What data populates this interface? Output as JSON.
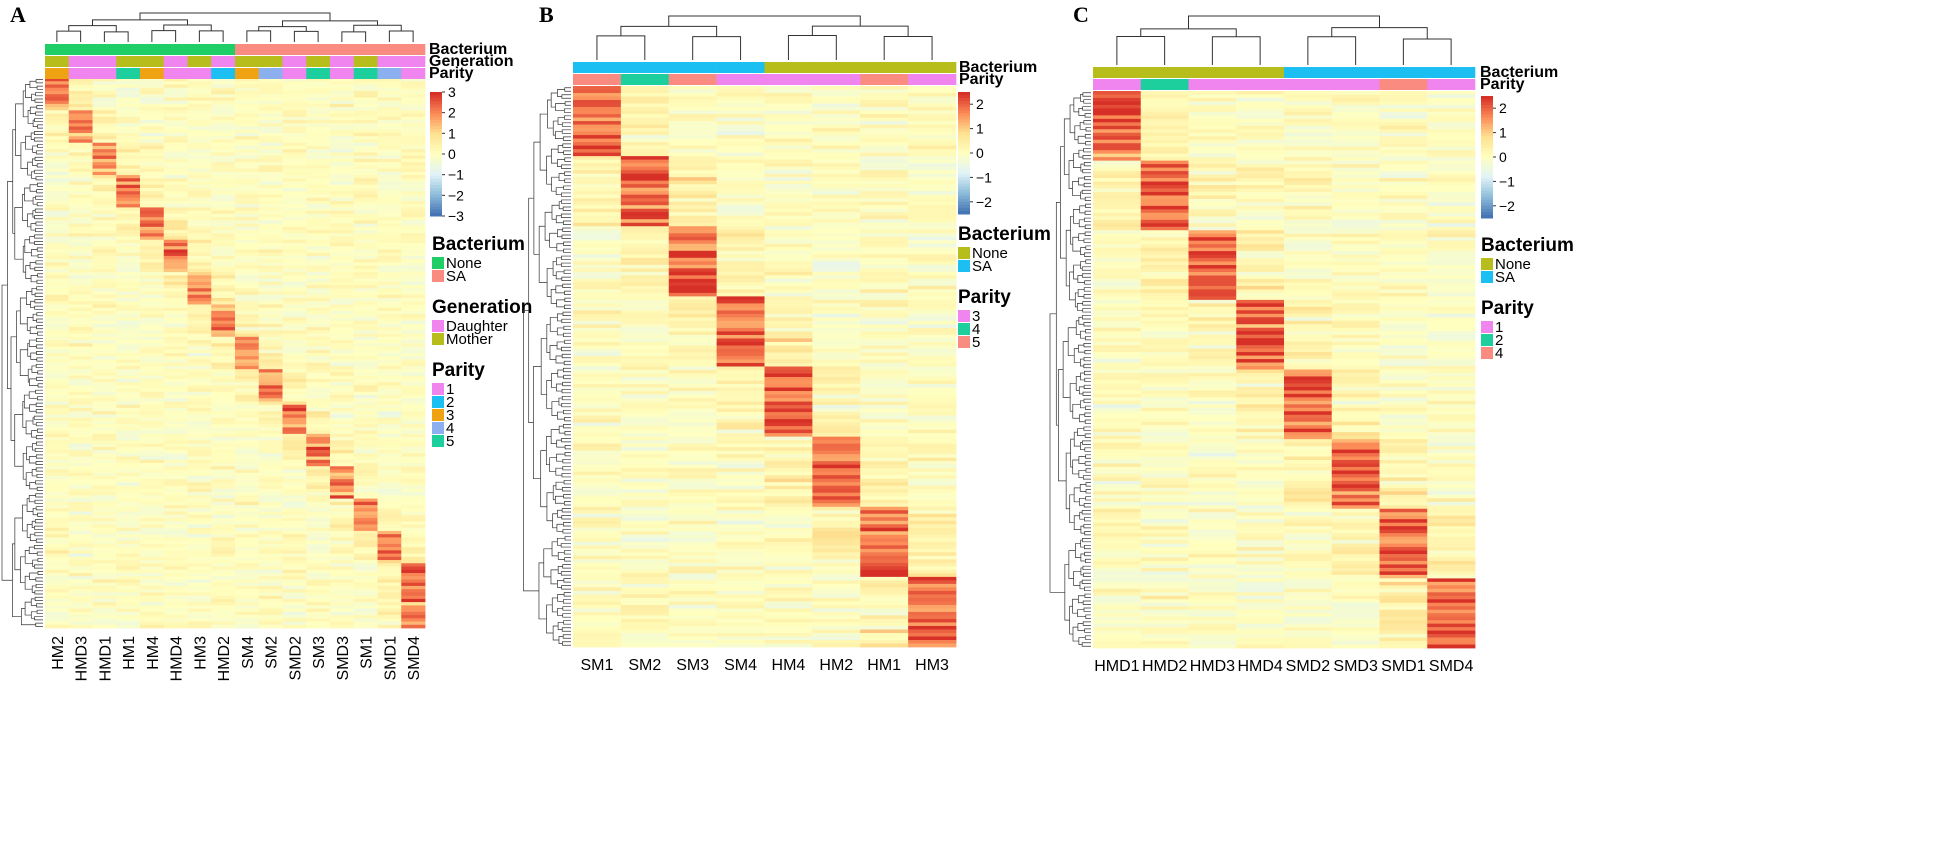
{
  "chart_data": [
    {
      "type": "heatmap",
      "panel_label": "A",
      "columns": [
        "HM2",
        "HMD3",
        "HMD1",
        "HM1",
        "HM4",
        "HMD4",
        "HM3",
        "HMD2",
        "SM4",
        "SM2",
        "SMD2",
        "SM3",
        "SMD3",
        "SM1",
        "SMD1",
        "SMD4"
      ],
      "annotation_tracks": [
        {
          "name": "Bacterium",
          "values": [
            "None",
            "None",
            "None",
            "None",
            "None",
            "None",
            "None",
            "None",
            "SA",
            "SA",
            "SA",
            "SA",
            "SA",
            "SA",
            "SA",
            "SA"
          ]
        },
        {
          "name": "Generation",
          "values": [
            "Mother",
            "Daughter",
            "Daughter",
            "Mother",
            "Mother",
            "Daughter",
            "Mother",
            "Daughter",
            "Mother",
            "Mother",
            "Daughter",
            "Mother",
            "Daughter",
            "Mother",
            "Daughter",
            "Daughter"
          ]
        },
        {
          "name": "Parity",
          "values": [
            "3",
            "1",
            "1",
            "5",
            "3",
            "1",
            "1",
            "2",
            "3",
            "4",
            "1",
            "5",
            "1",
            "5",
            "4",
            "1"
          ]
        }
      ],
      "legends": [
        {
          "title": "Bacterium",
          "items": [
            {
              "label": "None",
              "color": "#1fce66"
            },
            {
              "label": "SA",
              "color": "#f98b80"
            }
          ]
        },
        {
          "title": "Generation",
          "items": [
            {
              "label": "Daughter",
              "color": "#f185ef"
            },
            {
              "label": "Mother",
              "color": "#b7bd1b"
            }
          ]
        },
        {
          "title": "Parity",
          "items": [
            {
              "label": "1",
              "color": "#f185ef"
            },
            {
              "label": "2",
              "color": "#1bbff1"
            },
            {
              "label": "3",
              "color": "#efa313"
            },
            {
              "label": "4",
              "color": "#8bafef"
            },
            {
              "label": "5",
              "color": "#1ccf9c"
            }
          ]
        }
      ],
      "color_scale": {
        "ticks": [
          "3",
          "2",
          "1",
          "0",
          "−1",
          "−2",
          "−3"
        ],
        "range": [
          -3,
          3
        ]
      }
    },
    {
      "type": "heatmap",
      "panel_label": "B",
      "columns": [
        "SM1",
        "SM2",
        "SM3",
        "SM4",
        "HM4",
        "HM2",
        "HM1",
        "HM3"
      ],
      "annotation_tracks": [
        {
          "name": "Bacterium",
          "values": [
            "SA",
            "SA",
            "SA",
            "SA",
            "None",
            "None",
            "None",
            "None"
          ]
        },
        {
          "name": "Parity",
          "values": [
            "5",
            "4",
            "5",
            "3",
            "3",
            "3",
            "5",
            "3"
          ]
        }
      ],
      "legends": [
        {
          "title": "Bacterium",
          "items": [
            {
              "label": "None",
              "color": "#b7bd1b"
            },
            {
              "label": "SA",
              "color": "#1bbff1"
            }
          ]
        },
        {
          "title": "Parity",
          "items": [
            {
              "label": "3",
              "color": "#f185ef"
            },
            {
              "label": "4",
              "color": "#1ccf9c"
            },
            {
              "label": "5",
              "color": "#f98b80"
            }
          ]
        }
      ],
      "color_scale": {
        "ticks": [
          "2",
          "1",
          "0",
          "−1",
          "−2"
        ],
        "range": [
          -2.5,
          2.5
        ]
      }
    },
    {
      "type": "heatmap",
      "panel_label": "C",
      "columns": [
        "HMD1",
        "HMD2",
        "HMD3",
        "HMD4",
        "SMD2",
        "SMD3",
        "SMD1",
        "SMD4"
      ],
      "annotation_tracks": [
        {
          "name": "Bacterium",
          "values": [
            "None",
            "None",
            "None",
            "None",
            "SA",
            "SA",
            "SA",
            "SA"
          ]
        },
        {
          "name": "Parity",
          "values": [
            "1",
            "2",
            "1",
            "1",
            "1",
            "1",
            "4",
            "1"
          ]
        }
      ],
      "legends": [
        {
          "title": "Bacterium",
          "items": [
            {
              "label": "None",
              "color": "#b7bd1b"
            },
            {
              "label": "SA",
              "color": "#1bbff1"
            }
          ]
        },
        {
          "title": "Parity",
          "items": [
            {
              "label": "1",
              "color": "#f185ef"
            },
            {
              "label": "2",
              "color": "#1ccf9c"
            },
            {
              "label": "4",
              "color": "#f98b80"
            }
          ]
        }
      ],
      "color_scale": {
        "ticks": [
          "2",
          "1",
          "0",
          "−1",
          "−2"
        ],
        "range": [
          -2.5,
          2.5
        ]
      }
    }
  ]
}
